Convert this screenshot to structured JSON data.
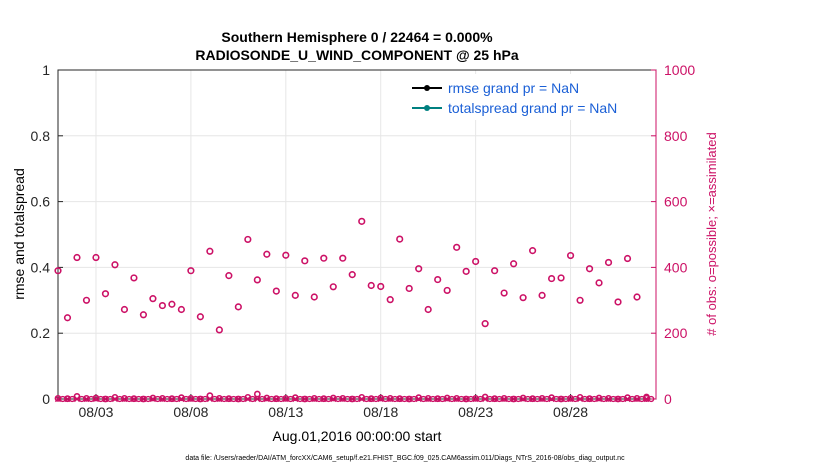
{
  "chart_data": {
    "type": "scatter",
    "title": "Southern Hemisphere 0 / 22464 = 0.000%",
    "subtitle": "RADIOSONDE_U_WIND_COMPONENT @ 25 hPa",
    "xlabel": "Aug.01,2016 00:00:00 start",
    "ylabel": "rmse and totalspread",
    "y2label": "# of obs: o=possible; ×=assimilated",
    "xlim": [
      1,
      32.5
    ],
    "ylim": [
      0,
      1
    ],
    "y2lim": [
      0,
      1000
    ],
    "x_ticks": [
      3,
      8,
      13,
      18,
      23,
      28
    ],
    "x_tick_labels": [
      "08/03",
      "08/08",
      "08/13",
      "08/18",
      "08/23",
      "08/28"
    ],
    "y_ticks": [
      0,
      0.2,
      0.4,
      0.6,
      0.8,
      1
    ],
    "y_tick_labels": [
      "0",
      "0.2",
      "0.4",
      "0.6",
      "0.8",
      "1"
    ],
    "y2_ticks": [
      0,
      200,
      400,
      600,
      800,
      1000
    ],
    "y2_tick_labels": [
      "0",
      "200",
      "400",
      "600",
      "800",
      "1000"
    ],
    "grid": true,
    "legend_position": "top-right",
    "legend": [
      {
        "label": "rmse grand pr = NaN",
        "color": "#000000"
      },
      {
        "label": "totalspread grand pr = NaN",
        "color": "#008080"
      }
    ],
    "series": [
      {
        "name": "possible",
        "marker": "o",
        "color": "#cc1166",
        "axis": "right",
        "x": [
          1.0,
          1.5,
          2.0,
          2.5,
          3.0,
          3.5,
          4.0,
          4.5,
          5.0,
          5.5,
          6.0,
          6.5,
          7.0,
          7.5,
          8.0,
          8.5,
          9.0,
          9.5,
          10.0,
          10.5,
          11.0,
          11.5,
          12.0,
          12.5,
          13.0,
          13.5,
          14.0,
          14.5,
          15.0,
          15.5,
          16.0,
          16.5,
          17.0,
          17.5,
          18.0,
          18.5,
          19.0,
          19.5,
          20.0,
          20.5,
          21.0,
          21.5,
          22.0,
          22.5,
          23.0,
          23.5,
          24.0,
          24.5,
          25.0,
          25.5,
          26.0,
          26.5,
          27.0,
          27.5,
          28.0,
          28.5,
          29.0,
          29.5,
          30.0,
          30.5,
          31.0,
          31.5,
          32.0
        ],
        "values": [
          390,
          247,
          430,
          300,
          430,
          320,
          408,
          272,
          368,
          256,
          305,
          284,
          288,
          272,
          390,
          250,
          449,
          210,
          375,
          280,
          485,
          362,
          440,
          328,
          437,
          315,
          420,
          310,
          428,
          341,
          428,
          378,
          540,
          345,
          342,
          302,
          486,
          336,
          396,
          272,
          363,
          330,
          461,
          388,
          418,
          229,
          390,
          322,
          411,
          308,
          451,
          315,
          366,
          368,
          436,
          300,
          396,
          353,
          415,
          295,
          427,
          310,
          2
        ]
      },
      {
        "name": "assimilated",
        "marker": "x",
        "color": "#cc1166",
        "axis": "right",
        "values_note": "near zero at every 0.5 day"
      }
    ],
    "near_zero_markers": [
      2,
      1,
      8,
      2,
      3,
      0,
      5,
      2,
      1,
      0,
      3,
      2,
      1,
      4,
      2,
      0,
      10,
      2,
      1,
      0,
      5,
      15,
      3,
      1,
      2,
      4,
      0,
      2,
      1,
      3,
      2,
      0,
      5,
      1,
      3,
      2,
      1,
      0,
      4,
      2,
      1,
      3,
      2,
      0,
      2,
      6,
      1,
      2,
      0,
      3,
      1,
      2,
      4,
      0,
      2,
      5,
      1,
      3,
      2,
      0,
      4,
      2,
      6
    ]
  },
  "footer": {
    "data_file": "data file: /Users/raeder/DAI/ATM_forcXX/CAM6_setup/f.e21.FHIST_BGC.f09_025.CAM6assim.011/Diags_NTrS_2016-08/obs_diag_output.nc"
  }
}
